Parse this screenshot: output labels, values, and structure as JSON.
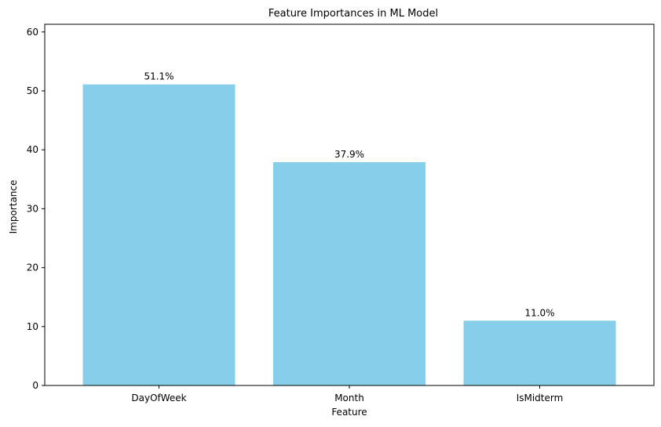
{
  "chart_data": {
    "type": "bar",
    "title": "Feature Importances in ML Model",
    "xlabel": "Feature",
    "ylabel": "Importance",
    "categories": [
      "DayOfWeek",
      "Month",
      "IsMidterm"
    ],
    "values": [
      51.1,
      37.9,
      11.0
    ],
    "data_labels": [
      "51.1%",
      "37.9%",
      "11.0%"
    ],
    "ylim": [
      0,
      61.3
    ],
    "yticks": [
      0,
      10,
      20,
      30,
      40,
      50,
      60
    ],
    "bar_color": "#87CEEB",
    "grid": false
  }
}
